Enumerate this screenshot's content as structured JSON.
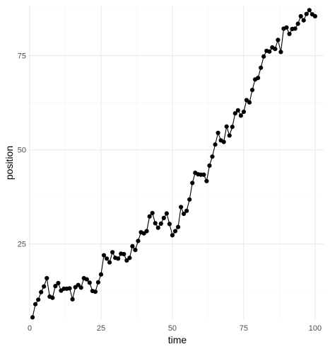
{
  "chart_data": {
    "type": "line",
    "xlabel": "time",
    "ylabel": "position",
    "xlim": [
      -0.5,
      103.0
    ],
    "ylim": [
      4.8,
      88.3
    ],
    "x_ticks": [
      0,
      25,
      50,
      75,
      100
    ],
    "x_tick_labels": [
      "0",
      "25",
      "50",
      "75",
      "100"
    ],
    "y_ticks": [
      25,
      50,
      75
    ],
    "y_tick_labels": [
      "25",
      "50",
      "75"
    ],
    "grid": true,
    "legend": "none",
    "series": [
      {
        "marker": "point",
        "color": "#000000",
        "x": [
          1,
          2,
          3,
          4,
          5,
          6,
          7,
          8,
          9,
          10,
          11,
          12,
          13,
          14,
          15,
          16,
          17,
          18,
          19,
          20,
          21,
          22,
          23,
          24,
          25,
          26,
          27,
          28,
          29,
          30,
          31,
          32,
          33,
          34,
          35,
          36,
          37,
          38,
          39,
          40,
          41,
          42,
          43,
          44,
          45,
          46,
          47,
          48,
          49,
          50,
          51,
          52,
          53,
          54,
          55,
          56,
          57,
          58,
          59,
          60,
          61,
          62,
          63,
          64,
          65,
          66,
          67,
          68,
          69,
          70,
          71,
          72,
          73,
          74,
          75,
          76,
          77,
          78,
          79,
          80,
          81,
          82,
          83,
          84,
          85,
          86,
          87,
          88,
          89,
          90,
          91,
          92,
          93,
          94,
          95,
          96,
          97,
          98,
          99,
          100
        ],
        "y": [
          5.5,
          9.0,
          10.2,
          12.2,
          13.7,
          15.9,
          11.0,
          10.7,
          13.8,
          14.6,
          12.6,
          13.1,
          13.1,
          13.2,
          10.3,
          13.5,
          14.1,
          13.4,
          15.9,
          15.6,
          14.7,
          12.5,
          12.3,
          14.8,
          16.9,
          22.0,
          21.1,
          20.1,
          22.8,
          21.3,
          21.1,
          22.4,
          22.3,
          20.6,
          21.3,
          24.4,
          23.4,
          25.8,
          28.1,
          27.8,
          28.4,
          32.3,
          33.2,
          30.5,
          29.3,
          30.4,
          31.9,
          33.1,
          30.3,
          27.3,
          28.4,
          29.5,
          34.8,
          33.0,
          33.8,
          36.8,
          41.2,
          43.9,
          43.5,
          43.4,
          43.4,
          41.7,
          45.8,
          48.2,
          51.4,
          54.5,
          52.5,
          52.1,
          56.2,
          53.8,
          56.1,
          59.7,
          60.5,
          59.1,
          60.1,
          63.2,
          62.6,
          65.9,
          68.7,
          69.1,
          71.8,
          74.8,
          76.3,
          76.1,
          77.2,
          76.8,
          79.2,
          76.0,
          82.2,
          82.5,
          80.8,
          82.1,
          82.2,
          83.5,
          85.5,
          84.4,
          86.1,
          87.1,
          86.0,
          85.5
        ]
      }
    ]
  }
}
